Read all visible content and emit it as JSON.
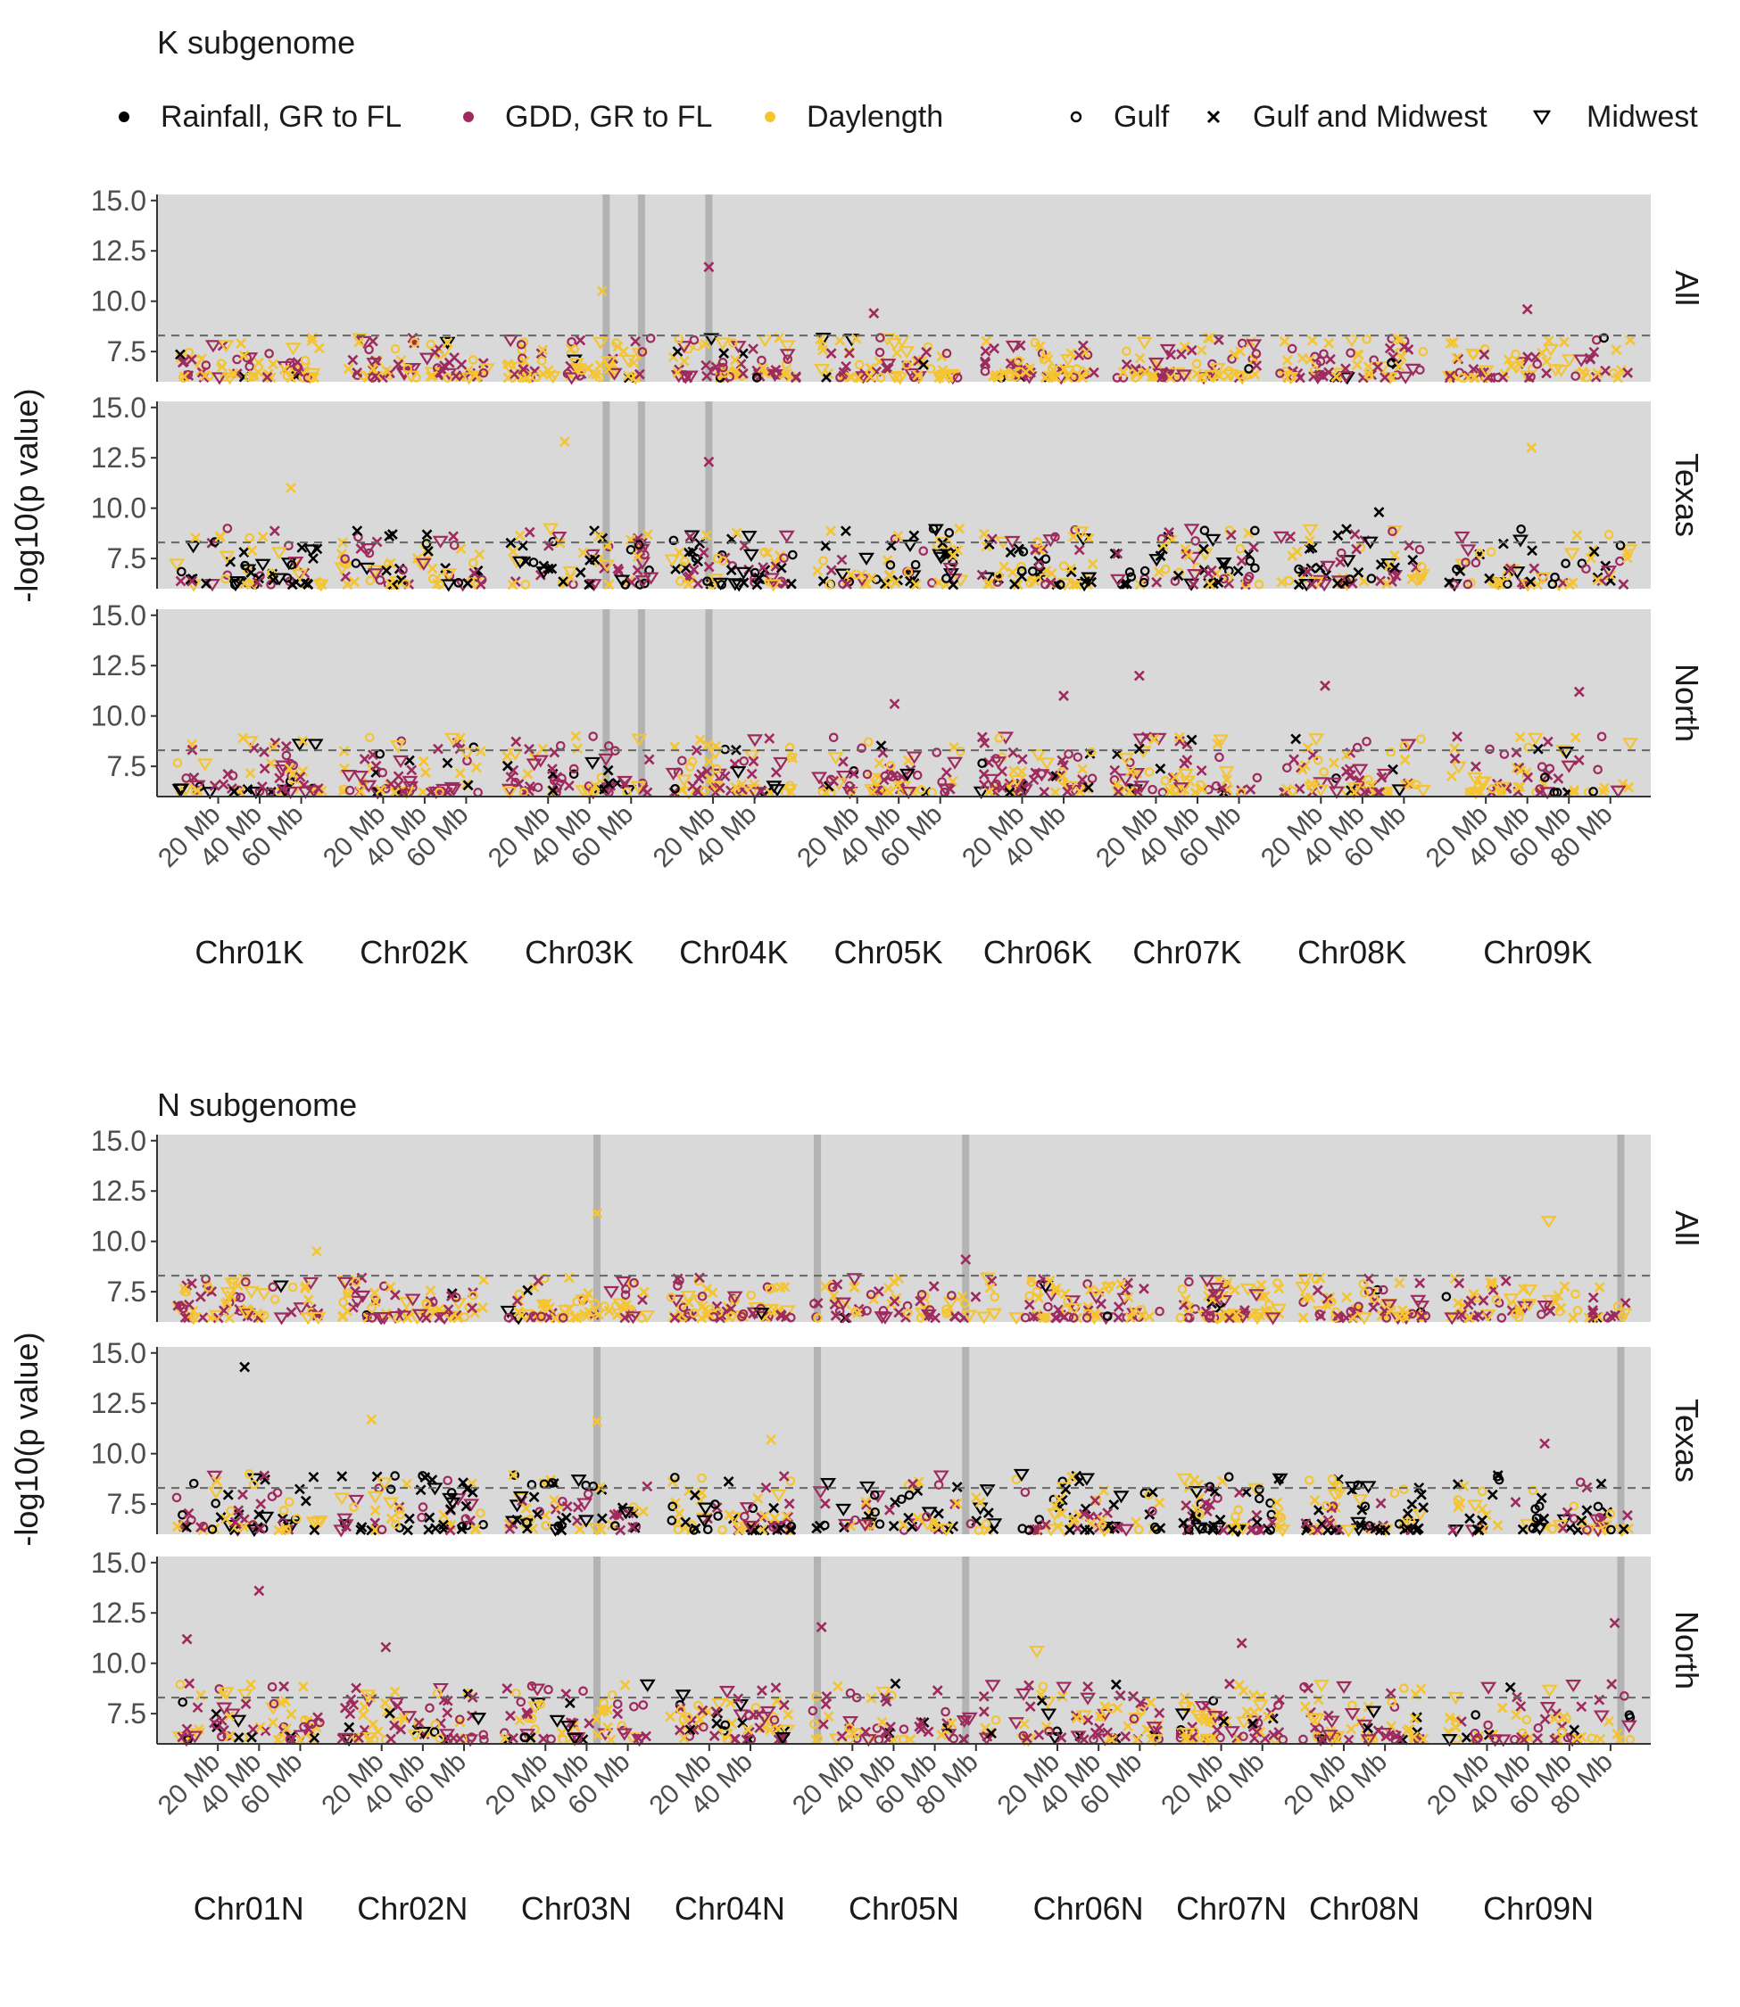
{
  "figure": {
    "ylabel": "-log10(p value)",
    "legend": {
      "variables": [
        {
          "label": "Rainfall, GR to FL",
          "color": "#000000"
        },
        {
          "label": "GDD, GR to FL",
          "color": "#9E2A5E"
        },
        {
          "label": "Daylength",
          "color": "#F5C431"
        }
      ],
      "regions": [
        {
          "label": "Gulf",
          "shape": "circle-open"
        },
        {
          "label": "Gulf and Midwest",
          "shape": "cross"
        },
        {
          "label": "Midwest",
          "shape": "triangle-down-open"
        }
      ]
    },
    "panel_labels": [
      "All",
      "Texas",
      "North"
    ]
  },
  "chart_data": [
    {
      "type": "scatter",
      "title": "K subgenome",
      "ylabel": "-log10(p value)",
      "ylim": [
        6.0,
        15.3
      ],
      "yticks": [
        "7.5",
        "10.0",
        "12.5",
        "15.0"
      ],
      "threshold": 8.3,
      "panels": [
        "All",
        "Texas",
        "North"
      ],
      "chromosomes": [
        {
          "name": "Chr01K",
          "length_mb": 70,
          "ticks": [
            "20 Mb",
            "40 Mb",
            "60 Mb"
          ]
        },
        {
          "name": "Chr02K",
          "length_mb": 70,
          "ticks": [
            "20 Mb",
            "40 Mb",
            "60 Mb"
          ]
        },
        {
          "name": "Chr03K",
          "length_mb": 70,
          "ticks": [
            "20 Mb",
            "40 Mb",
            "60 Mb"
          ]
        },
        {
          "name": "Chr04K",
          "length_mb": 60,
          "ticks": [
            "20 Mb",
            "40 Mb"
          ]
        },
        {
          "name": "Chr05K",
          "length_mb": 70,
          "ticks": [
            "20 Mb",
            "40 Mb",
            "60 Mb"
          ]
        },
        {
          "name": "Chr06K",
          "length_mb": 55,
          "ticks": [
            "20 Mb",
            "40 Mb"
          ]
        },
        {
          "name": "Chr07K",
          "length_mb": 70,
          "ticks": [
            "20 Mb",
            "40 Mb",
            "60 Mb"
          ]
        },
        {
          "name": "Chr08K",
          "length_mb": 70,
          "ticks": [
            "20 Mb",
            "40 Mb",
            "60 Mb"
          ]
        },
        {
          "name": "Chr09K",
          "length_mb": 90,
          "ticks": [
            "20 Mb",
            "40 Mb",
            "60 Mb",
            "80 Mb"
          ]
        }
      ],
      "highlights": [
        {
          "chrom": "Chr03K",
          "mb": 48
        },
        {
          "chrom": "Chr03K",
          "mb": 65
        },
        {
          "chrom": "Chr04K",
          "mb": 18
        }
      ],
      "notable_points": [
        {
          "panel": "All",
          "chrom": "Chr04K",
          "mb": 18,
          "y": 11.7,
          "variable": "GDD, GR to FL",
          "region": "Gulf and Midwest"
        },
        {
          "panel": "All",
          "chrom": "Chr03K",
          "mb": 46,
          "y": 10.5,
          "variable": "Daylength",
          "region": "Gulf and Midwest"
        },
        {
          "panel": "All",
          "chrom": "Chr09K",
          "mb": 40,
          "y": 9.6,
          "variable": "GDD, GR to FL",
          "region": "Gulf and Midwest"
        },
        {
          "panel": "All",
          "chrom": "Chr05K",
          "mb": 28,
          "y": 9.4,
          "variable": "GDD, GR to FL",
          "region": "Gulf and Midwest"
        },
        {
          "panel": "Texas",
          "chrom": "Chr03K",
          "mb": 28,
          "y": 13.3,
          "variable": "Daylength",
          "region": "Gulf and Midwest"
        },
        {
          "panel": "Texas",
          "chrom": "Chr09K",
          "mb": 42,
          "y": 13.0,
          "variable": "Daylength",
          "region": "Gulf and Midwest"
        },
        {
          "panel": "Texas",
          "chrom": "Chr04K",
          "mb": 18,
          "y": 12.3,
          "variable": "GDD, GR to FL",
          "region": "Gulf and Midwest"
        },
        {
          "panel": "Texas",
          "chrom": "Chr01K",
          "mb": 55,
          "y": 11.0,
          "variable": "Daylength",
          "region": "Gulf and Midwest"
        },
        {
          "panel": "Texas",
          "chrom": "Chr08K",
          "mb": 48,
          "y": 9.8,
          "variable": "Rainfall, GR to FL",
          "region": "Gulf and Midwest"
        },
        {
          "panel": "North",
          "chrom": "Chr07K",
          "mb": 12,
          "y": 12.0,
          "variable": "GDD, GR to FL",
          "region": "Gulf and Midwest"
        },
        {
          "panel": "North",
          "chrom": "Chr08K",
          "mb": 22,
          "y": 11.5,
          "variable": "GDD, GR to FL",
          "region": "Gulf and Midwest"
        },
        {
          "panel": "North",
          "chrom": "Chr09K",
          "mb": 65,
          "y": 11.2,
          "variable": "GDD, GR to FL",
          "region": "Gulf and Midwest"
        },
        {
          "panel": "North",
          "chrom": "Chr06K",
          "mb": 40,
          "y": 11.0,
          "variable": "GDD, GR to FL",
          "region": "Gulf and Midwest"
        },
        {
          "panel": "North",
          "chrom": "Chr05K",
          "mb": 38,
          "y": 10.6,
          "variable": "GDD, GR to FL",
          "region": "Gulf and Midwest"
        }
      ]
    },
    {
      "type": "scatter",
      "title": "N subgenome",
      "ylabel": "-log10(p value)",
      "ylim": [
        6.0,
        15.3
      ],
      "yticks": [
        "7.5",
        "10.0",
        "12.5",
        "15.0"
      ],
      "threshold": 8.3,
      "panels": [
        "All",
        "Texas",
        "North"
      ],
      "chromosomes": [
        {
          "name": "Chr01N",
          "length_mb": 70,
          "ticks": [
            "20 Mb",
            "40 Mb",
            "60 Mb"
          ]
        },
        {
          "name": "Chr02N",
          "length_mb": 70,
          "ticks": [
            "20 Mb",
            "40 Mb",
            "60 Mb"
          ]
        },
        {
          "name": "Chr03N",
          "length_mb": 70,
          "ticks": [
            "20 Mb",
            "40 Mb",
            "60 Mb"
          ]
        },
        {
          "name": "Chr04N",
          "length_mb": 60,
          "ticks": [
            "20 Mb",
            "40 Mb"
          ]
        },
        {
          "name": "Chr05N",
          "length_mb": 90,
          "ticks": [
            "20 Mb",
            "40 Mb",
            "60 Mb",
            "80 Mb"
          ]
        },
        {
          "name": "Chr06N",
          "length_mb": 70,
          "ticks": [
            "20 Mb",
            "40 Mb",
            "60 Mb"
          ]
        },
        {
          "name": "Chr07N",
          "length_mb": 50,
          "ticks": [
            "20 Mb",
            "40 Mb"
          ]
        },
        {
          "name": "Chr08N",
          "length_mb": 60,
          "ticks": [
            "20 Mb",
            "40 Mb"
          ]
        },
        {
          "name": "Chr09N",
          "length_mb": 90,
          "ticks": [
            "20 Mb",
            "40 Mb",
            "60 Mb",
            "80 Mb"
          ]
        }
      ],
      "highlights": [
        {
          "chrom": "Chr03N",
          "mb": 45
        },
        {
          "chrom": "Chr05N",
          "mb": 3
        },
        {
          "chrom": "Chr05N",
          "mb": 75
        },
        {
          "chrom": "Chr09N",
          "mb": 85
        }
      ],
      "notable_points": [
        {
          "panel": "All",
          "chrom": "Chr03N",
          "mb": 45,
          "y": 11.4,
          "variable": "Daylength",
          "region": "Gulf and Midwest"
        },
        {
          "panel": "All",
          "chrom": "Chr09N",
          "mb": 50,
          "y": 11.0,
          "variable": "Daylength",
          "region": "Midwest"
        },
        {
          "panel": "All",
          "chrom": "Chr01N",
          "mb": 68,
          "y": 9.5,
          "variable": "Daylength",
          "region": "Gulf and Midwest"
        },
        {
          "panel": "All",
          "chrom": "Chr05N",
          "mb": 75,
          "y": 9.1,
          "variable": "GDD, GR to FL",
          "region": "Gulf and Midwest"
        },
        {
          "panel": "Texas",
          "chrom": "Chr01N",
          "mb": 33,
          "y": 14.3,
          "variable": "Rainfall, GR to FL",
          "region": "Gulf and Midwest"
        },
        {
          "panel": "Texas",
          "chrom": "Chr02N",
          "mb": 15,
          "y": 11.7,
          "variable": "Daylength",
          "region": "Gulf and Midwest"
        },
        {
          "panel": "Texas",
          "chrom": "Chr03N",
          "mb": 45,
          "y": 11.6,
          "variable": "Daylength",
          "region": "Gulf and Midwest"
        },
        {
          "panel": "Texas",
          "chrom": "Chr04N",
          "mb": 50,
          "y": 10.7,
          "variable": "Daylength",
          "region": "Gulf and Midwest"
        },
        {
          "panel": "Texas",
          "chrom": "Chr09N",
          "mb": 48,
          "y": 10.5,
          "variable": "GDD, GR to FL",
          "region": "Gulf and Midwest"
        },
        {
          "panel": "North",
          "chrom": "Chr01N",
          "mb": 40,
          "y": 13.6,
          "variable": "GDD, GR to FL",
          "region": "Gulf and Midwest"
        },
        {
          "panel": "North",
          "chrom": "Chr09N",
          "mb": 82,
          "y": 12.0,
          "variable": "GDD, GR to FL",
          "region": "Gulf and Midwest"
        },
        {
          "panel": "North",
          "chrom": "Chr05N",
          "mb": 5,
          "y": 11.8,
          "variable": "GDD, GR to FL",
          "region": "Gulf and Midwest"
        },
        {
          "panel": "North",
          "chrom": "Chr01N",
          "mb": 5,
          "y": 11.2,
          "variable": "GDD, GR to FL",
          "region": "Gulf and Midwest"
        },
        {
          "panel": "North",
          "chrom": "Chr07N",
          "mb": 30,
          "y": 11.0,
          "variable": "GDD, GR to FL",
          "region": "Gulf and Midwest"
        },
        {
          "panel": "North",
          "chrom": "Chr02N",
          "mb": 22,
          "y": 10.8,
          "variable": "GDD, GR to FL",
          "region": "Gulf and Midwest"
        },
        {
          "panel": "North",
          "chrom": "Chr06N",
          "mb": 10,
          "y": 10.6,
          "variable": "Daylength",
          "region": "Midwest"
        }
      ]
    }
  ]
}
